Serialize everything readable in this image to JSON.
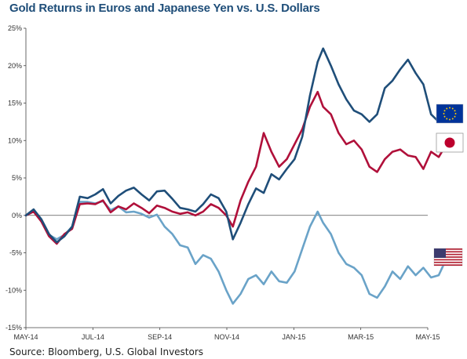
{
  "chart_data": {
    "type": "line",
    "title": "Gold Returns in Euros and Japanese Yen vs. U.S. Dollars",
    "source": "Source: Bloomberg, U.S. Global Investors",
    "ylim": [
      -15,
      25
    ],
    "y_ticks": [
      "25%",
      "20%",
      "15%",
      "10%",
      "5%",
      "0%",
      "-5%",
      "-10%",
      "-15%"
    ],
    "x_ticks": [
      "MAY-14",
      "JUL-14",
      "SEP-14",
      "NOV-14",
      "JAN-15",
      "MAR-15",
      "MAY-15"
    ],
    "xlim": [
      "2014-05-01",
      "2015-05-01"
    ],
    "grid": false,
    "series": [
      {
        "flag": "eu-flag-icon",
        "color": "#1f4e79",
        "points": [
          [
            "2014-05-01",
            0.0
          ],
          [
            "2014-05-08",
            0.8
          ],
          [
            "2014-05-15",
            -0.5
          ],
          [
            "2014-05-22",
            -2.5
          ],
          [
            "2014-05-29",
            -3.6
          ],
          [
            "2014-06-05",
            -2.8
          ],
          [
            "2014-06-12",
            -1.5
          ],
          [
            "2014-06-19",
            2.5
          ],
          [
            "2014-06-26",
            2.3
          ],
          [
            "2014-07-03",
            2.8
          ],
          [
            "2014-07-10",
            3.5
          ],
          [
            "2014-07-17",
            1.6
          ],
          [
            "2014-07-24",
            2.6
          ],
          [
            "2014-07-31",
            3.3
          ],
          [
            "2014-08-07",
            3.7
          ],
          [
            "2014-08-14",
            2.8
          ],
          [
            "2014-08-21",
            2.0
          ],
          [
            "2014-08-28",
            3.2
          ],
          [
            "2014-09-04",
            3.3
          ],
          [
            "2014-09-11",
            2.2
          ],
          [
            "2014-09-18",
            1.0
          ],
          [
            "2014-09-25",
            0.8
          ],
          [
            "2014-10-02",
            0.5
          ],
          [
            "2014-10-09",
            1.5
          ],
          [
            "2014-10-16",
            2.8
          ],
          [
            "2014-10-23",
            2.3
          ],
          [
            "2014-10-30",
            0.5
          ],
          [
            "2014-11-05",
            -3.2
          ],
          [
            "2014-11-12",
            -1.0
          ],
          [
            "2014-11-19",
            1.5
          ],
          [
            "2014-11-26",
            3.6
          ],
          [
            "2014-12-03",
            3.0
          ],
          [
            "2014-12-10",
            5.5
          ],
          [
            "2014-12-17",
            4.8
          ],
          [
            "2014-12-24",
            6.2
          ],
          [
            "2014-12-31",
            7.5
          ],
          [
            "2015-01-07",
            10.5
          ],
          [
            "2015-01-14",
            16.0
          ],
          [
            "2015-01-21",
            20.5
          ],
          [
            "2015-01-26",
            22.3
          ],
          [
            "2015-02-02",
            20.0
          ],
          [
            "2015-02-09",
            17.5
          ],
          [
            "2015-02-16",
            15.5
          ],
          [
            "2015-02-23",
            14.0
          ],
          [
            "2015-03-02",
            13.5
          ],
          [
            "2015-03-09",
            12.5
          ],
          [
            "2015-03-16",
            13.5
          ],
          [
            "2015-03-23",
            17.0
          ],
          [
            "2015-03-30",
            18.0
          ],
          [
            "2015-04-06",
            19.5
          ],
          [
            "2015-04-13",
            20.8
          ],
          [
            "2015-04-20",
            19.0
          ],
          [
            "2015-04-27",
            17.5
          ],
          [
            "2015-05-04",
            13.5
          ],
          [
            "2015-05-11",
            12.5
          ],
          [
            "2015-05-18",
            13.5
          ]
        ]
      },
      {
        "flag": "japan-flag-icon",
        "color": "#b0103a",
        "points": [
          [
            "2014-05-01",
            0.0
          ],
          [
            "2014-05-08",
            0.5
          ],
          [
            "2014-05-15",
            -0.8
          ],
          [
            "2014-05-22",
            -2.8
          ],
          [
            "2014-05-29",
            -3.8
          ],
          [
            "2014-06-05",
            -2.5
          ],
          [
            "2014-06-12",
            -1.8
          ],
          [
            "2014-06-19",
            1.5
          ],
          [
            "2014-06-26",
            1.6
          ],
          [
            "2014-07-03",
            1.5
          ],
          [
            "2014-07-10",
            2.0
          ],
          [
            "2014-07-17",
            0.4
          ],
          [
            "2014-07-24",
            1.2
          ],
          [
            "2014-07-31",
            0.8
          ],
          [
            "2014-08-07",
            1.6
          ],
          [
            "2014-08-14",
            1.0
          ],
          [
            "2014-08-21",
            0.3
          ],
          [
            "2014-08-28",
            1.3
          ],
          [
            "2014-09-04",
            1.0
          ],
          [
            "2014-09-11",
            0.5
          ],
          [
            "2014-09-18",
            0.2
          ],
          [
            "2014-09-25",
            0.4
          ],
          [
            "2014-10-02",
            0.0
          ],
          [
            "2014-10-09",
            0.5
          ],
          [
            "2014-10-16",
            1.5
          ],
          [
            "2014-10-23",
            1.0
          ],
          [
            "2014-10-30",
            0.0
          ],
          [
            "2014-11-05",
            -1.5
          ],
          [
            "2014-11-12",
            2.0
          ],
          [
            "2014-11-19",
            4.5
          ],
          [
            "2014-11-26",
            6.5
          ],
          [
            "2014-12-03",
            11.0
          ],
          [
            "2014-12-10",
            8.5
          ],
          [
            "2014-12-17",
            6.5
          ],
          [
            "2014-12-24",
            7.5
          ],
          [
            "2014-12-31",
            9.5
          ],
          [
            "2015-01-07",
            11.5
          ],
          [
            "2015-01-14",
            14.5
          ],
          [
            "2015-01-21",
            16.5
          ],
          [
            "2015-01-26",
            14.5
          ],
          [
            "2015-02-02",
            13.5
          ],
          [
            "2015-02-09",
            11.0
          ],
          [
            "2015-02-16",
            9.5
          ],
          [
            "2015-02-23",
            10.0
          ],
          [
            "2015-03-02",
            8.8
          ],
          [
            "2015-03-09",
            6.5
          ],
          [
            "2015-03-16",
            5.8
          ],
          [
            "2015-03-23",
            7.5
          ],
          [
            "2015-03-30",
            8.5
          ],
          [
            "2015-04-06",
            8.8
          ],
          [
            "2015-04-13",
            8.0
          ],
          [
            "2015-04-20",
            7.8
          ],
          [
            "2015-04-27",
            6.2
          ],
          [
            "2015-05-04",
            8.5
          ],
          [
            "2015-05-11",
            7.8
          ],
          [
            "2015-05-18",
            9.5
          ]
        ]
      },
      {
        "flag": "us-flag-icon",
        "color": "#6aa3c8",
        "points": [
          [
            "2014-05-01",
            0.0
          ],
          [
            "2014-05-08",
            0.7
          ],
          [
            "2014-05-15",
            -0.8
          ],
          [
            "2014-05-22",
            -2.6
          ],
          [
            "2014-05-29",
            -3.2
          ],
          [
            "2014-06-05",
            -2.6
          ],
          [
            "2014-06-12",
            -1.5
          ],
          [
            "2014-06-19",
            1.8
          ],
          [
            "2014-06-26",
            1.8
          ],
          [
            "2014-07-03",
            1.6
          ],
          [
            "2014-07-10",
            1.9
          ],
          [
            "2014-07-17",
            0.7
          ],
          [
            "2014-07-24",
            1.2
          ],
          [
            "2014-07-31",
            0.4
          ],
          [
            "2014-08-07",
            0.5
          ],
          [
            "2014-08-14",
            0.2
          ],
          [
            "2014-08-21",
            -0.3
          ],
          [
            "2014-08-28",
            0.1
          ],
          [
            "2014-09-04",
            -1.5
          ],
          [
            "2014-09-11",
            -2.5
          ],
          [
            "2014-09-18",
            -4.0
          ],
          [
            "2014-09-25",
            -4.3
          ],
          [
            "2014-10-02",
            -6.5
          ],
          [
            "2014-10-09",
            -5.3
          ],
          [
            "2014-10-16",
            -5.8
          ],
          [
            "2014-10-23",
            -7.5
          ],
          [
            "2014-10-30",
            -10.0
          ],
          [
            "2014-11-05",
            -11.8
          ],
          [
            "2014-11-12",
            -10.5
          ],
          [
            "2014-11-19",
            -8.5
          ],
          [
            "2014-11-26",
            -8.0
          ],
          [
            "2014-12-03",
            -9.2
          ],
          [
            "2014-12-10",
            -7.5
          ],
          [
            "2014-12-17",
            -8.8
          ],
          [
            "2014-12-24",
            -9.0
          ],
          [
            "2014-12-31",
            -7.5
          ],
          [
            "2015-01-07",
            -4.5
          ],
          [
            "2015-01-14",
            -1.5
          ],
          [
            "2015-01-21",
            0.5
          ],
          [
            "2015-01-26",
            -1.0
          ],
          [
            "2015-02-02",
            -2.5
          ],
          [
            "2015-02-09",
            -5.0
          ],
          [
            "2015-02-16",
            -6.5
          ],
          [
            "2015-02-23",
            -7.0
          ],
          [
            "2015-03-02",
            -8.0
          ],
          [
            "2015-03-09",
            -10.5
          ],
          [
            "2015-03-16",
            -11.0
          ],
          [
            "2015-03-23",
            -9.5
          ],
          [
            "2015-03-30",
            -7.5
          ],
          [
            "2015-04-06",
            -8.5
          ],
          [
            "2015-04-13",
            -6.8
          ],
          [
            "2015-04-20",
            -8.0
          ],
          [
            "2015-04-27",
            -7.0
          ],
          [
            "2015-05-04",
            -8.3
          ],
          [
            "2015-05-11",
            -8.0
          ],
          [
            "2015-05-18",
            -5.8
          ]
        ]
      }
    ]
  }
}
